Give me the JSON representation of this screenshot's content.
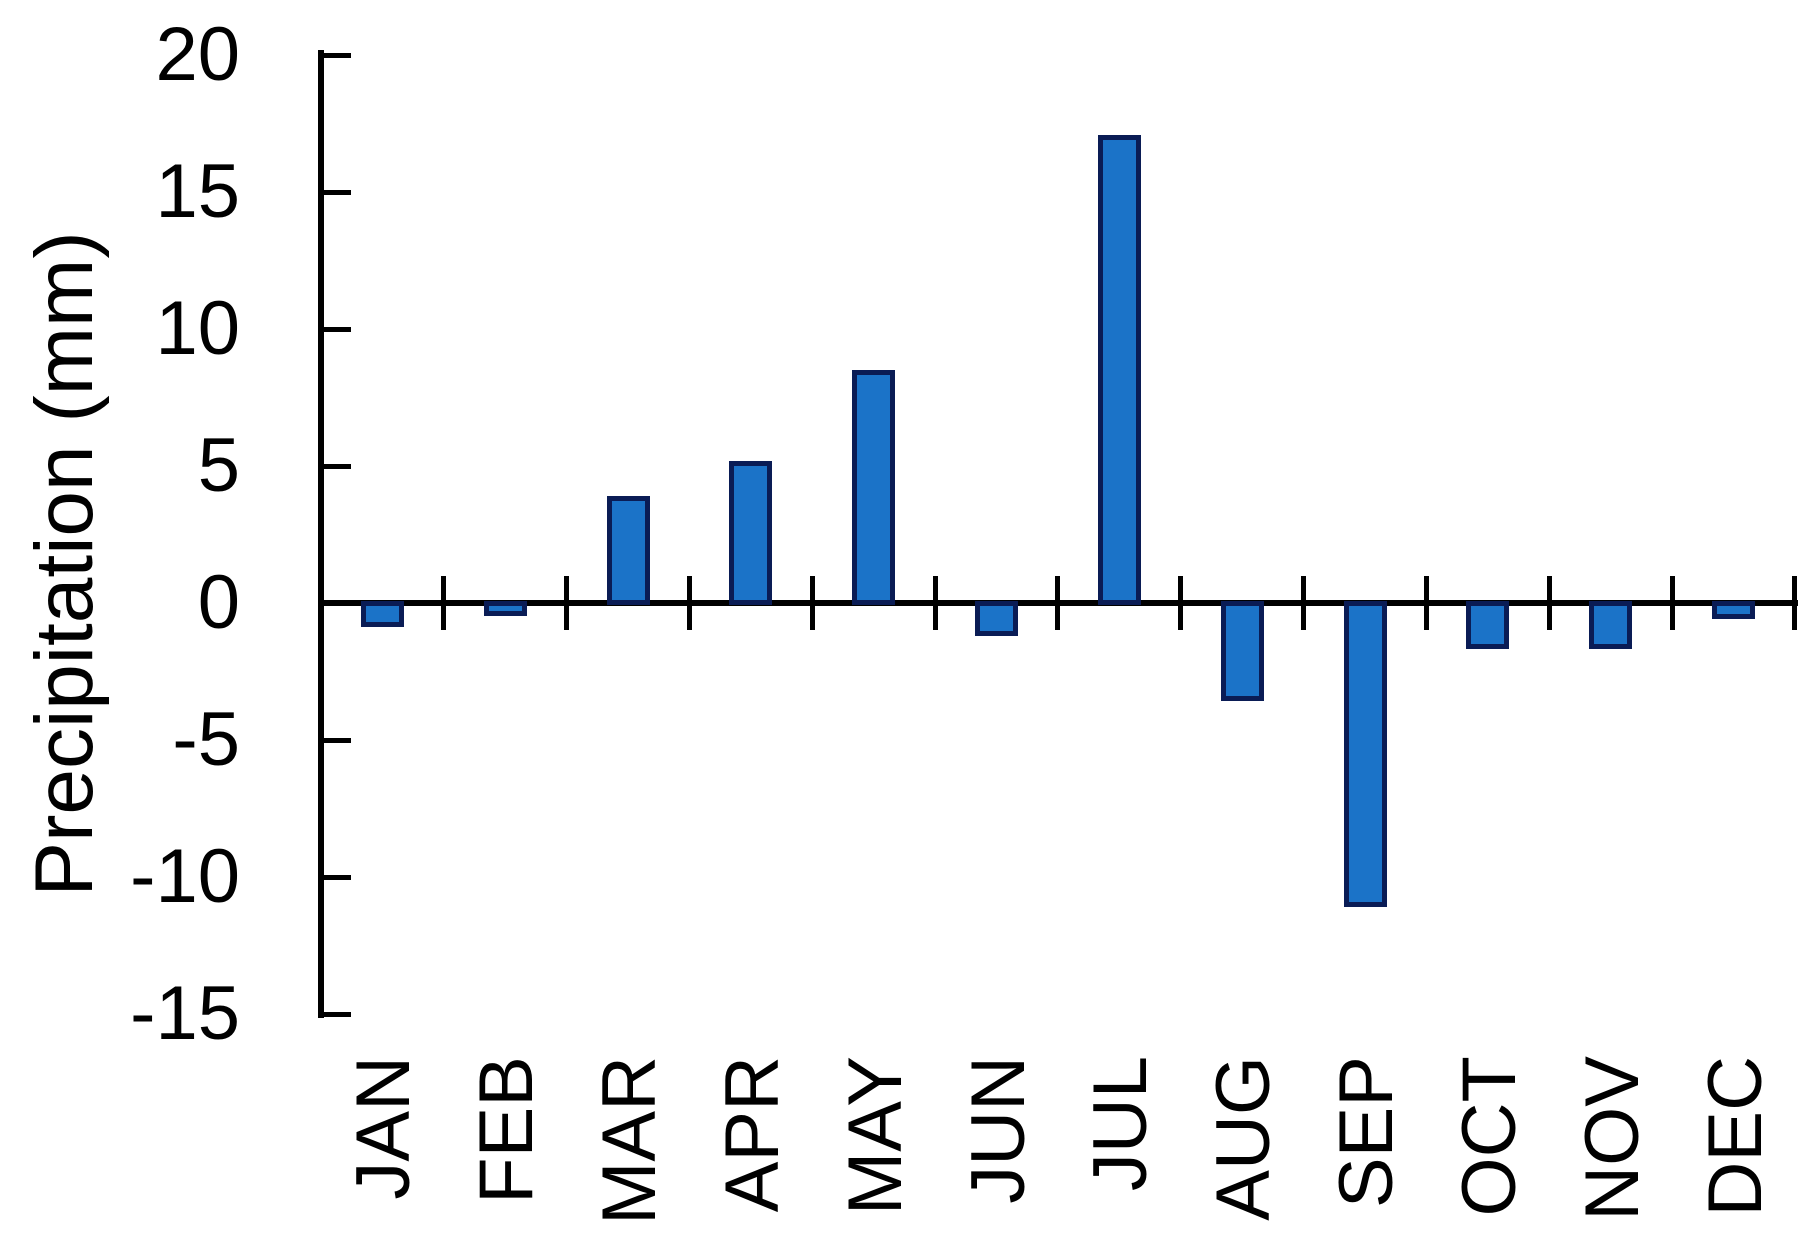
{
  "figure": {
    "background": "#ffffff",
    "axis_color": "#000000",
    "text_color": "#000000"
  },
  "chart_data": {
    "type": "bar",
    "title": "",
    "xlabel": "",
    "ylabel": "Precipitation (mm)",
    "categories": [
      "JAN",
      "FEB",
      "MAR",
      "APR",
      "MAY",
      "JUN",
      "JUL",
      "AUG",
      "SEP",
      "OCT",
      "NOV",
      "DEC"
    ],
    "values": [
      -0.8,
      -0.4,
      3.8,
      5.1,
      8.4,
      -1.1,
      17.0,
      -3.5,
      -11.0,
      -1.6,
      -1.6,
      -0.5
    ],
    "yticks": [
      20,
      15,
      10,
      5,
      0,
      -5,
      -10,
      -15
    ],
    "ylim": [
      -15,
      20
    ],
    "grid": false,
    "legend": false,
    "bar_fill_color": "#1b73c8",
    "bar_border_color": "#0a1c55"
  }
}
